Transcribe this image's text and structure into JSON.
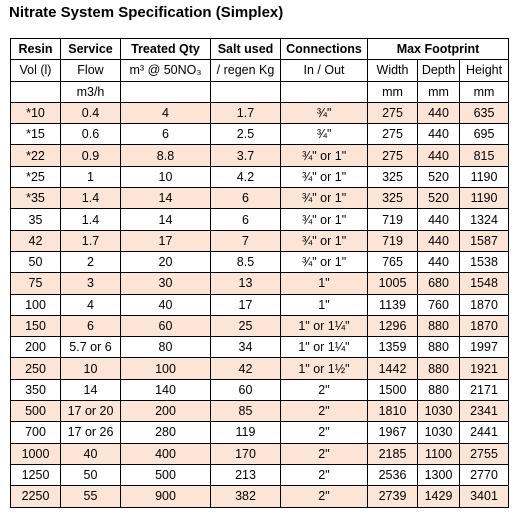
{
  "title": "Nitrate System Specification (Simplex)",
  "header": {
    "row1": [
      "Resin",
      "Service",
      "Treated Qty",
      "Salt used",
      "Connections",
      "Max Footprint"
    ],
    "row2": [
      "Vol (l)",
      "Flow",
      "m³ @ 50NO₃",
      "/ regen Kg",
      "In / Out",
      "Width",
      "Depth",
      "Height"
    ],
    "row3": {
      "flow": "m3/h",
      "units": [
        "mm",
        "mm",
        "mm"
      ]
    }
  },
  "table": {
    "rows": [
      [
        "*10",
        "0.4",
        "4",
        "1.7",
        "¾\"",
        "275",
        "440",
        "635"
      ],
      [
        "*15",
        "0.6",
        "6",
        "2.5",
        "¾\"",
        "275",
        "440",
        "695"
      ],
      [
        "*22",
        "0.9",
        "8.8",
        "3.7",
        "¾\" or 1\"",
        "275",
        "440",
        "815"
      ],
      [
        "*25",
        "1",
        "10",
        "4.2",
        "¾\" or 1\"",
        "325",
        "520",
        "1190"
      ],
      [
        "*35",
        "1.4",
        "14",
        "6",
        "¾\" or 1\"",
        "325",
        "520",
        "1190"
      ],
      [
        "35",
        "1.4",
        "14",
        "6",
        "¾\" or 1\"",
        "719",
        "440",
        "1324"
      ],
      [
        "42",
        "1.7",
        "17",
        "7",
        "¾\" or 1\"",
        "719",
        "440",
        "1587"
      ],
      [
        "50",
        "2",
        "20",
        "8.5",
        "¾\" or 1\"",
        "765",
        "440",
        "1538"
      ],
      [
        "75",
        "3",
        "30",
        "13",
        "1\"",
        "1005",
        "680",
        "1548"
      ],
      [
        "100",
        "4",
        "40",
        "17",
        "1\"",
        "1139",
        "760",
        "1870"
      ],
      [
        "150",
        "6",
        "60",
        "25",
        "1\" or 1¼\"",
        "1296",
        "880",
        "1870"
      ],
      [
        "200",
        "5.7 or 6",
        "80",
        "34",
        "1\" or 1¼\"",
        "1359",
        "880",
        "1997"
      ],
      [
        "250",
        "10",
        "100",
        "42",
        "1\" or 1½\"",
        "1442",
        "880",
        "1921"
      ],
      [
        "350",
        "14",
        "140",
        "60",
        "2\"",
        "1500",
        "880",
        "2171"
      ],
      [
        "500",
        "17 or 20",
        "200",
        "85",
        "2\"",
        "1810",
        "1030",
        "2341"
      ],
      [
        "700",
        "17 or 26",
        "280",
        "119",
        "2\"",
        "1967",
        "1030",
        "2441"
      ],
      [
        "1000",
        "40",
        "400",
        "170",
        "2\"",
        "2185",
        "1100",
        "2755"
      ],
      [
        "1250",
        "50",
        "500",
        "213",
        "2\"",
        "2536",
        "1300",
        "2770"
      ],
      [
        "2250",
        "55",
        "900",
        "382",
        "2\"",
        "2739",
        "1429",
        "3401"
      ]
    ]
  }
}
